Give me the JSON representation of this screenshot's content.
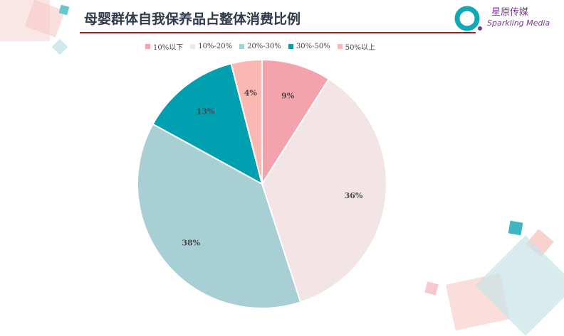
{
  "header": {
    "title": "母婴群体自我保养品占整体消费比例"
  },
  "brand": {
    "name_cn": "星原传媒",
    "name_en": "Sparkling Media"
  },
  "colors": {
    "accent_rule": "#b01818",
    "series": [
      "#f4a3ac",
      "#f3e4e6",
      "#a8cfd3",
      "#00a0b0",
      "#f9b9b2"
    ]
  },
  "chart_data": {
    "type": "pie",
    "categories": [
      "10%以下",
      "10%-20%",
      "20%-30%",
      "30%-50%",
      "50%以上"
    ],
    "values": [
      9,
      36,
      38,
      13,
      4
    ],
    "labels": [
      "9%",
      "36%",
      "38%",
      "13%",
      "4%"
    ],
    "title": "母婴群体自我保养品占整体消费比例",
    "legend": "top",
    "start_angle": "12 o'clock, clockwise"
  }
}
